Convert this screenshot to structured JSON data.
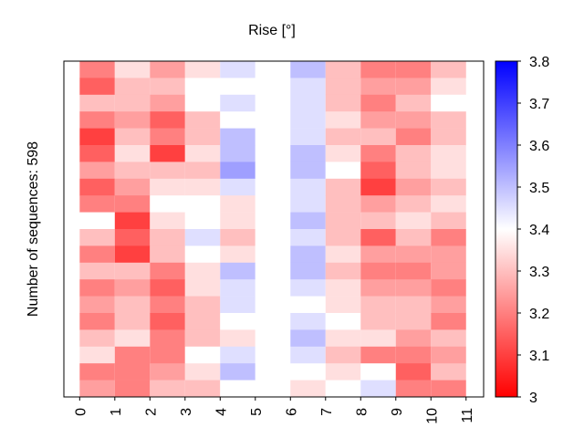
{
  "chart_data": {
    "type": "heatmap",
    "title": "Rise [°]",
    "ylabel": "Number of sequences: 598",
    "xlim": [
      -0.45,
      11.5
    ],
    "xticks": [
      0,
      1,
      2,
      3,
      4,
      5,
      6,
      7,
      8,
      9,
      10,
      11
    ],
    "colors": [
      "#ff0000",
      "#ffffff",
      "#0000ff"
    ],
    "clim": [
      3,
      3.8
    ],
    "cticks": [
      3,
      3.1,
      3.2,
      3.3,
      3.4,
      3.5,
      3.6,
      3.7,
      3.8
    ],
    "values": [
      [
        3.2,
        3.35,
        3.25,
        3.35,
        3.45,
        3.4,
        3.5,
        3.3,
        3.2,
        3.2,
        3.3
      ],
      [
        3.15,
        3.3,
        3.3,
        3.4,
        3.4,
        3.4,
        3.45,
        3.3,
        3.25,
        3.25,
        3.35
      ],
      [
        3.3,
        3.3,
        3.25,
        3.4,
        3.45,
        3.4,
        3.45,
        3.3,
        3.2,
        3.3,
        3.4
      ],
      [
        3.2,
        3.25,
        3.15,
        3.3,
        3.4,
        3.4,
        3.45,
        3.35,
        3.25,
        3.25,
        3.3
      ],
      [
        3.1,
        3.3,
        3.2,
        3.3,
        3.5,
        3.4,
        3.45,
        3.3,
        3.3,
        3.2,
        3.3
      ],
      [
        3.15,
        3.35,
        3.1,
        3.35,
        3.5,
        3.4,
        3.5,
        3.35,
        3.2,
        3.3,
        3.35
      ],
      [
        3.25,
        3.3,
        3.3,
        3.3,
        3.55,
        3.4,
        3.5,
        3.4,
        3.15,
        3.3,
        3.35
      ],
      [
        3.15,
        3.25,
        3.35,
        3.35,
        3.45,
        3.4,
        3.45,
        3.3,
        3.1,
        3.25,
        3.3
      ],
      [
        3.2,
        3.2,
        3.4,
        3.4,
        3.35,
        3.4,
        3.45,
        3.3,
        3.25,
        3.3,
        3.35
      ],
      [
        3.4,
        3.1,
        3.35,
        3.4,
        3.35,
        3.4,
        3.5,
        3.3,
        3.3,
        3.35,
        3.3
      ],
      [
        3.3,
        3.15,
        3.3,
        3.45,
        3.3,
        3.4,
        3.45,
        3.3,
        3.15,
        3.3,
        3.2
      ],
      [
        3.2,
        3.1,
        3.3,
        3.4,
        3.35,
        3.4,
        3.5,
        3.35,
        3.25,
        3.25,
        3.25
      ],
      [
        3.3,
        3.3,
        3.2,
        3.35,
        3.5,
        3.4,
        3.5,
        3.3,
        3.2,
        3.2,
        3.25
      ],
      [
        3.2,
        3.25,
        3.15,
        3.35,
        3.45,
        3.4,
        3.45,
        3.35,
        3.25,
        3.25,
        3.2
      ],
      [
        3.25,
        3.3,
        3.2,
        3.3,
        3.45,
        3.4,
        3.4,
        3.35,
        3.3,
        3.3,
        3.25
      ],
      [
        3.2,
        3.3,
        3.15,
        3.3,
        3.4,
        3.4,
        3.45,
        3.4,
        3.3,
        3.3,
        3.2
      ],
      [
        3.3,
        3.35,
        3.2,
        3.3,
        3.35,
        3.4,
        3.5,
        3.35,
        3.35,
        3.25,
        3.3
      ],
      [
        3.35,
        3.2,
        3.2,
        3.4,
        3.45,
        3.4,
        3.45,
        3.3,
        3.2,
        3.2,
        3.25
      ],
      [
        3.2,
        3.2,
        3.25,
        3.35,
        3.5,
        3.4,
        3.4,
        3.35,
        3.4,
        3.15,
        3.3
      ],
      [
        3.25,
        3.2,
        3.3,
        3.3,
        3.4,
        3.4,
        3.35,
        3.4,
        3.45,
        3.2,
        3.2
      ]
    ]
  }
}
